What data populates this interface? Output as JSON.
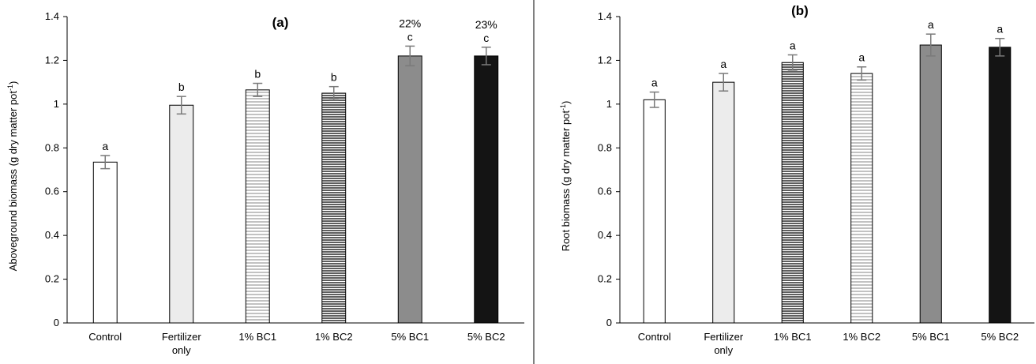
{
  "chart_data": [
    {
      "type": "bar",
      "panel_label": "(a)",
      "ylabel": "Aboveground biomass (g dry matter pot",
      "ylabel_sup": "-1",
      "ylabel_close": ")",
      "ylim": [
        0,
        1.4
      ],
      "yticks": [
        "0",
        "0.2",
        "0.4",
        "0.6",
        "0.8",
        "1",
        "1.2",
        "1.4"
      ],
      "categories": [
        [
          "Control"
        ],
        [
          "Fertilizer",
          "only"
        ],
        [
          "1% BC1"
        ],
        [
          "1% BC2"
        ],
        [
          "5% BC1"
        ],
        [
          "5% BC2"
        ]
      ],
      "values": [
        0.735,
        0.995,
        1.065,
        1.05,
        1.22,
        1.22
      ],
      "errors": [
        0.03,
        0.04,
        0.03,
        0.03,
        0.045,
        0.04
      ],
      "letters": [
        "a",
        "b",
        "b",
        "b",
        "c",
        "c"
      ],
      "percent_labels": [
        "",
        "",
        "",
        "",
        "22%",
        "23%"
      ],
      "fills": [
        "white",
        "lightgray",
        "hstripe-light",
        "hstripe-dark",
        "#8c8c8c",
        "#141414"
      ]
    },
    {
      "type": "bar",
      "panel_label": "(b)",
      "ylabel": "Root biomass (g dry matter pot",
      "ylabel_sup": "-1",
      "ylabel_close": ")",
      "ylim": [
        0,
        1.4
      ],
      "yticks": [
        "0",
        "0.2",
        "0.4",
        "0.6",
        "0.8",
        "1",
        "1.2",
        "1.4"
      ],
      "categories": [
        [
          "Control"
        ],
        [
          "Fertilizer",
          "only"
        ],
        [
          "1% BC1"
        ],
        [
          "1% BC2"
        ],
        [
          "5% BC1"
        ],
        [
          "5% BC2"
        ]
      ],
      "values": [
        1.02,
        1.1,
        1.19,
        1.14,
        1.27,
        1.26
      ],
      "errors": [
        0.035,
        0.04,
        0.035,
        0.03,
        0.05,
        0.04
      ],
      "letters": [
        "a",
        "a",
        "a",
        "a",
        "a",
        "a"
      ],
      "percent_labels": [
        "",
        "",
        "",
        "",
        "",
        ""
      ],
      "fills": [
        "white",
        "lightgray",
        "hstripe-dark",
        "hstripe-light",
        "#8c8c8c",
        "#141414"
      ]
    }
  ]
}
